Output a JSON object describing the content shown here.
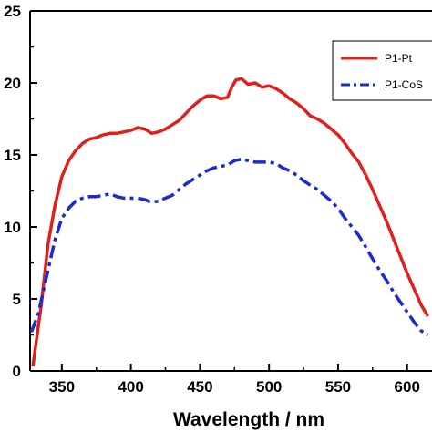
{
  "chart_data": {
    "type": "line",
    "title": "",
    "xlabel": "Wavelength / nm",
    "ylabel": "",
    "xlim": [
      327,
      618
    ],
    "ylim": [
      0,
      25
    ],
    "x_ticks": [
      "350",
      "400",
      "450",
      "500",
      "550",
      "600"
    ],
    "y_ticks": [
      "0",
      "5",
      "10",
      "15",
      "20",
      "25"
    ],
    "grid": false,
    "legend_position": "top-right",
    "series": [
      {
        "name": "P1-Pt",
        "color": "#e0201b",
        "style": "solid",
        "points": [
          [
            329,
            0.3
          ],
          [
            335,
            4.5
          ],
          [
            340,
            8.8
          ],
          [
            345,
            11.5
          ],
          [
            350,
            13.5
          ],
          [
            355,
            14.6
          ],
          [
            360,
            15.3
          ],
          [
            365,
            15.8
          ],
          [
            370,
            16.1
          ],
          [
            375,
            16.2
          ],
          [
            380,
            16.4
          ],
          [
            385,
            16.5
          ],
          [
            390,
            16.5
          ],
          [
            395,
            16.6
          ],
          [
            400,
            16.7
          ],
          [
            405,
            16.9
          ],
          [
            410,
            16.8
          ],
          [
            415,
            16.5
          ],
          [
            420,
            16.6
          ],
          [
            425,
            16.8
          ],
          [
            430,
            17.1
          ],
          [
            435,
            17.4
          ],
          [
            440,
            17.9
          ],
          [
            445,
            18.4
          ],
          [
            450,
            18.8
          ],
          [
            455,
            19.1
          ],
          [
            460,
            19.1
          ],
          [
            465,
            18.9
          ],
          [
            470,
            19.0
          ],
          [
            473,
            19.7
          ],
          [
            476,
            20.2
          ],
          [
            480,
            20.3
          ],
          [
            485,
            19.9
          ],
          [
            490,
            20.0
          ],
          [
            495,
            19.7
          ],
          [
            500,
            19.8
          ],
          [
            505,
            19.6
          ],
          [
            510,
            19.3
          ],
          [
            515,
            18.9
          ],
          [
            520,
            18.6
          ],
          [
            525,
            18.2
          ],
          [
            530,
            17.7
          ],
          [
            535,
            17.5
          ],
          [
            540,
            17.2
          ],
          [
            545,
            16.8
          ],
          [
            550,
            16.4
          ],
          [
            555,
            15.8
          ],
          [
            560,
            15.1
          ],
          [
            565,
            14.5
          ],
          [
            570,
            13.6
          ],
          [
            575,
            12.6
          ],
          [
            580,
            11.5
          ],
          [
            585,
            10.4
          ],
          [
            590,
            9.2
          ],
          [
            595,
            8.0
          ],
          [
            600,
            6.8
          ],
          [
            605,
            5.7
          ],
          [
            610,
            4.6
          ],
          [
            615,
            3.8
          ]
        ]
      },
      {
        "name": "P1-CoS",
        "color": "#1a2bd0",
        "style": "dash-dot",
        "points": [
          [
            328,
            2.7
          ],
          [
            333,
            4.0
          ],
          [
            340,
            7.0
          ],
          [
            345,
            9.1
          ],
          [
            350,
            10.6
          ],
          [
            355,
            11.3
          ],
          [
            360,
            11.8
          ],
          [
            365,
            12.0
          ],
          [
            370,
            12.1
          ],
          [
            375,
            12.1
          ],
          [
            380,
            12.2
          ],
          [
            385,
            12.3
          ],
          [
            390,
            12.1
          ],
          [
            395,
            12.0
          ],
          [
            400,
            12.0
          ],
          [
            405,
            12.0
          ],
          [
            410,
            11.9
          ],
          [
            415,
            11.7
          ],
          [
            420,
            11.8
          ],
          [
            425,
            12.0
          ],
          [
            430,
            12.2
          ],
          [
            435,
            12.6
          ],
          [
            440,
            13.0
          ],
          [
            445,
            13.3
          ],
          [
            450,
            13.6
          ],
          [
            455,
            13.9
          ],
          [
            460,
            14.1
          ],
          [
            465,
            14.2
          ],
          [
            470,
            14.3
          ],
          [
            475,
            14.6
          ],
          [
            480,
            14.7
          ],
          [
            485,
            14.6
          ],
          [
            490,
            14.5
          ],
          [
            495,
            14.5
          ],
          [
            500,
            14.5
          ],
          [
            505,
            14.4
          ],
          [
            510,
            14.1
          ],
          [
            515,
            13.9
          ],
          [
            520,
            13.6
          ],
          [
            525,
            13.2
          ],
          [
            530,
            12.9
          ],
          [
            535,
            12.6
          ],
          [
            540,
            12.2
          ],
          [
            545,
            11.8
          ],
          [
            550,
            11.3
          ],
          [
            555,
            10.6
          ],
          [
            560,
            10.0
          ],
          [
            565,
            9.4
          ],
          [
            570,
            8.6
          ],
          [
            575,
            7.8
          ],
          [
            580,
            7.0
          ],
          [
            585,
            6.3
          ],
          [
            590,
            5.5
          ],
          [
            595,
            4.8
          ],
          [
            600,
            4.1
          ],
          [
            605,
            3.4
          ],
          [
            610,
            2.8
          ],
          [
            615,
            2.5
          ]
        ]
      }
    ]
  },
  "colors": {
    "axis": "#000000"
  }
}
